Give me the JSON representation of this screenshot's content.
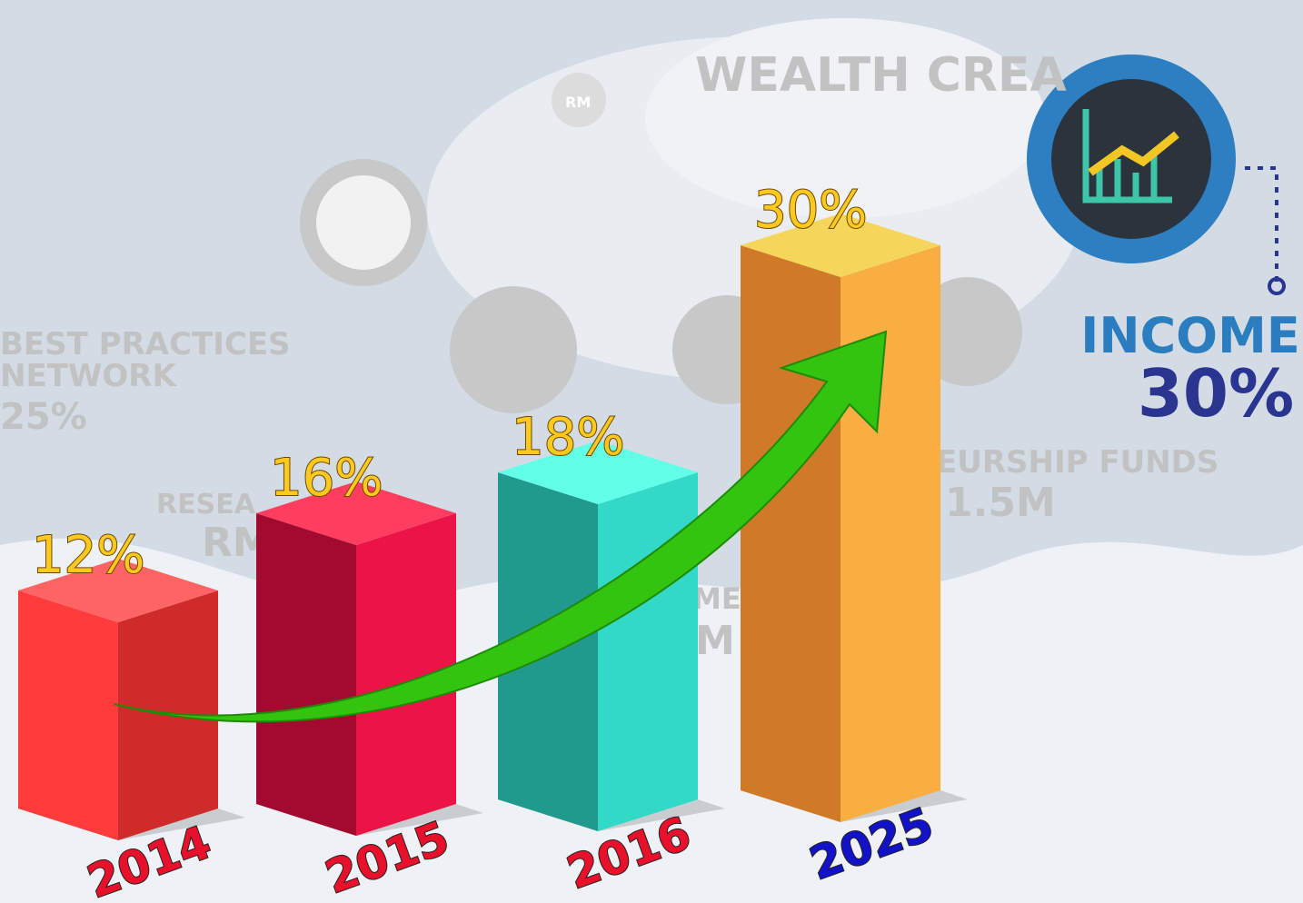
{
  "chart_data": {
    "type": "bar3d",
    "categories": [
      "2014",
      "2015",
      "2016",
      "2025"
    ],
    "values": [
      12,
      16,
      18,
      30
    ],
    "value_labels": [
      "12%",
      "16%",
      "18%",
      "30%"
    ],
    "face_colors": [
      [
        "#ff3b3b",
        "#cf2b2b",
        "#ff6464"
      ],
      [
        "#a30a30",
        "#ec1446",
        "#ff3d5e"
      ],
      [
        "#1f9a8c",
        "#33d9c7",
        "#62ffe8"
      ],
      [
        "#d07a28",
        "#f9ae42",
        "#f5d65a"
      ]
    ],
    "category_label_colors": [
      "#e8102a",
      "#e8102a",
      "#e8102a",
      "#1212c8"
    ],
    "value_label_color": "#ffc81e",
    "background_texts": [
      "WEALTH CREA",
      "BEST PRACTICES",
      "NETWORK",
      "25%",
      "RESEA",
      "RM",
      "EURSHIP FUNDS",
      "1.5M",
      "ME",
      "M",
      "RM"
    ],
    "badge": {
      "title": "INCOME",
      "value": "30%"
    }
  }
}
